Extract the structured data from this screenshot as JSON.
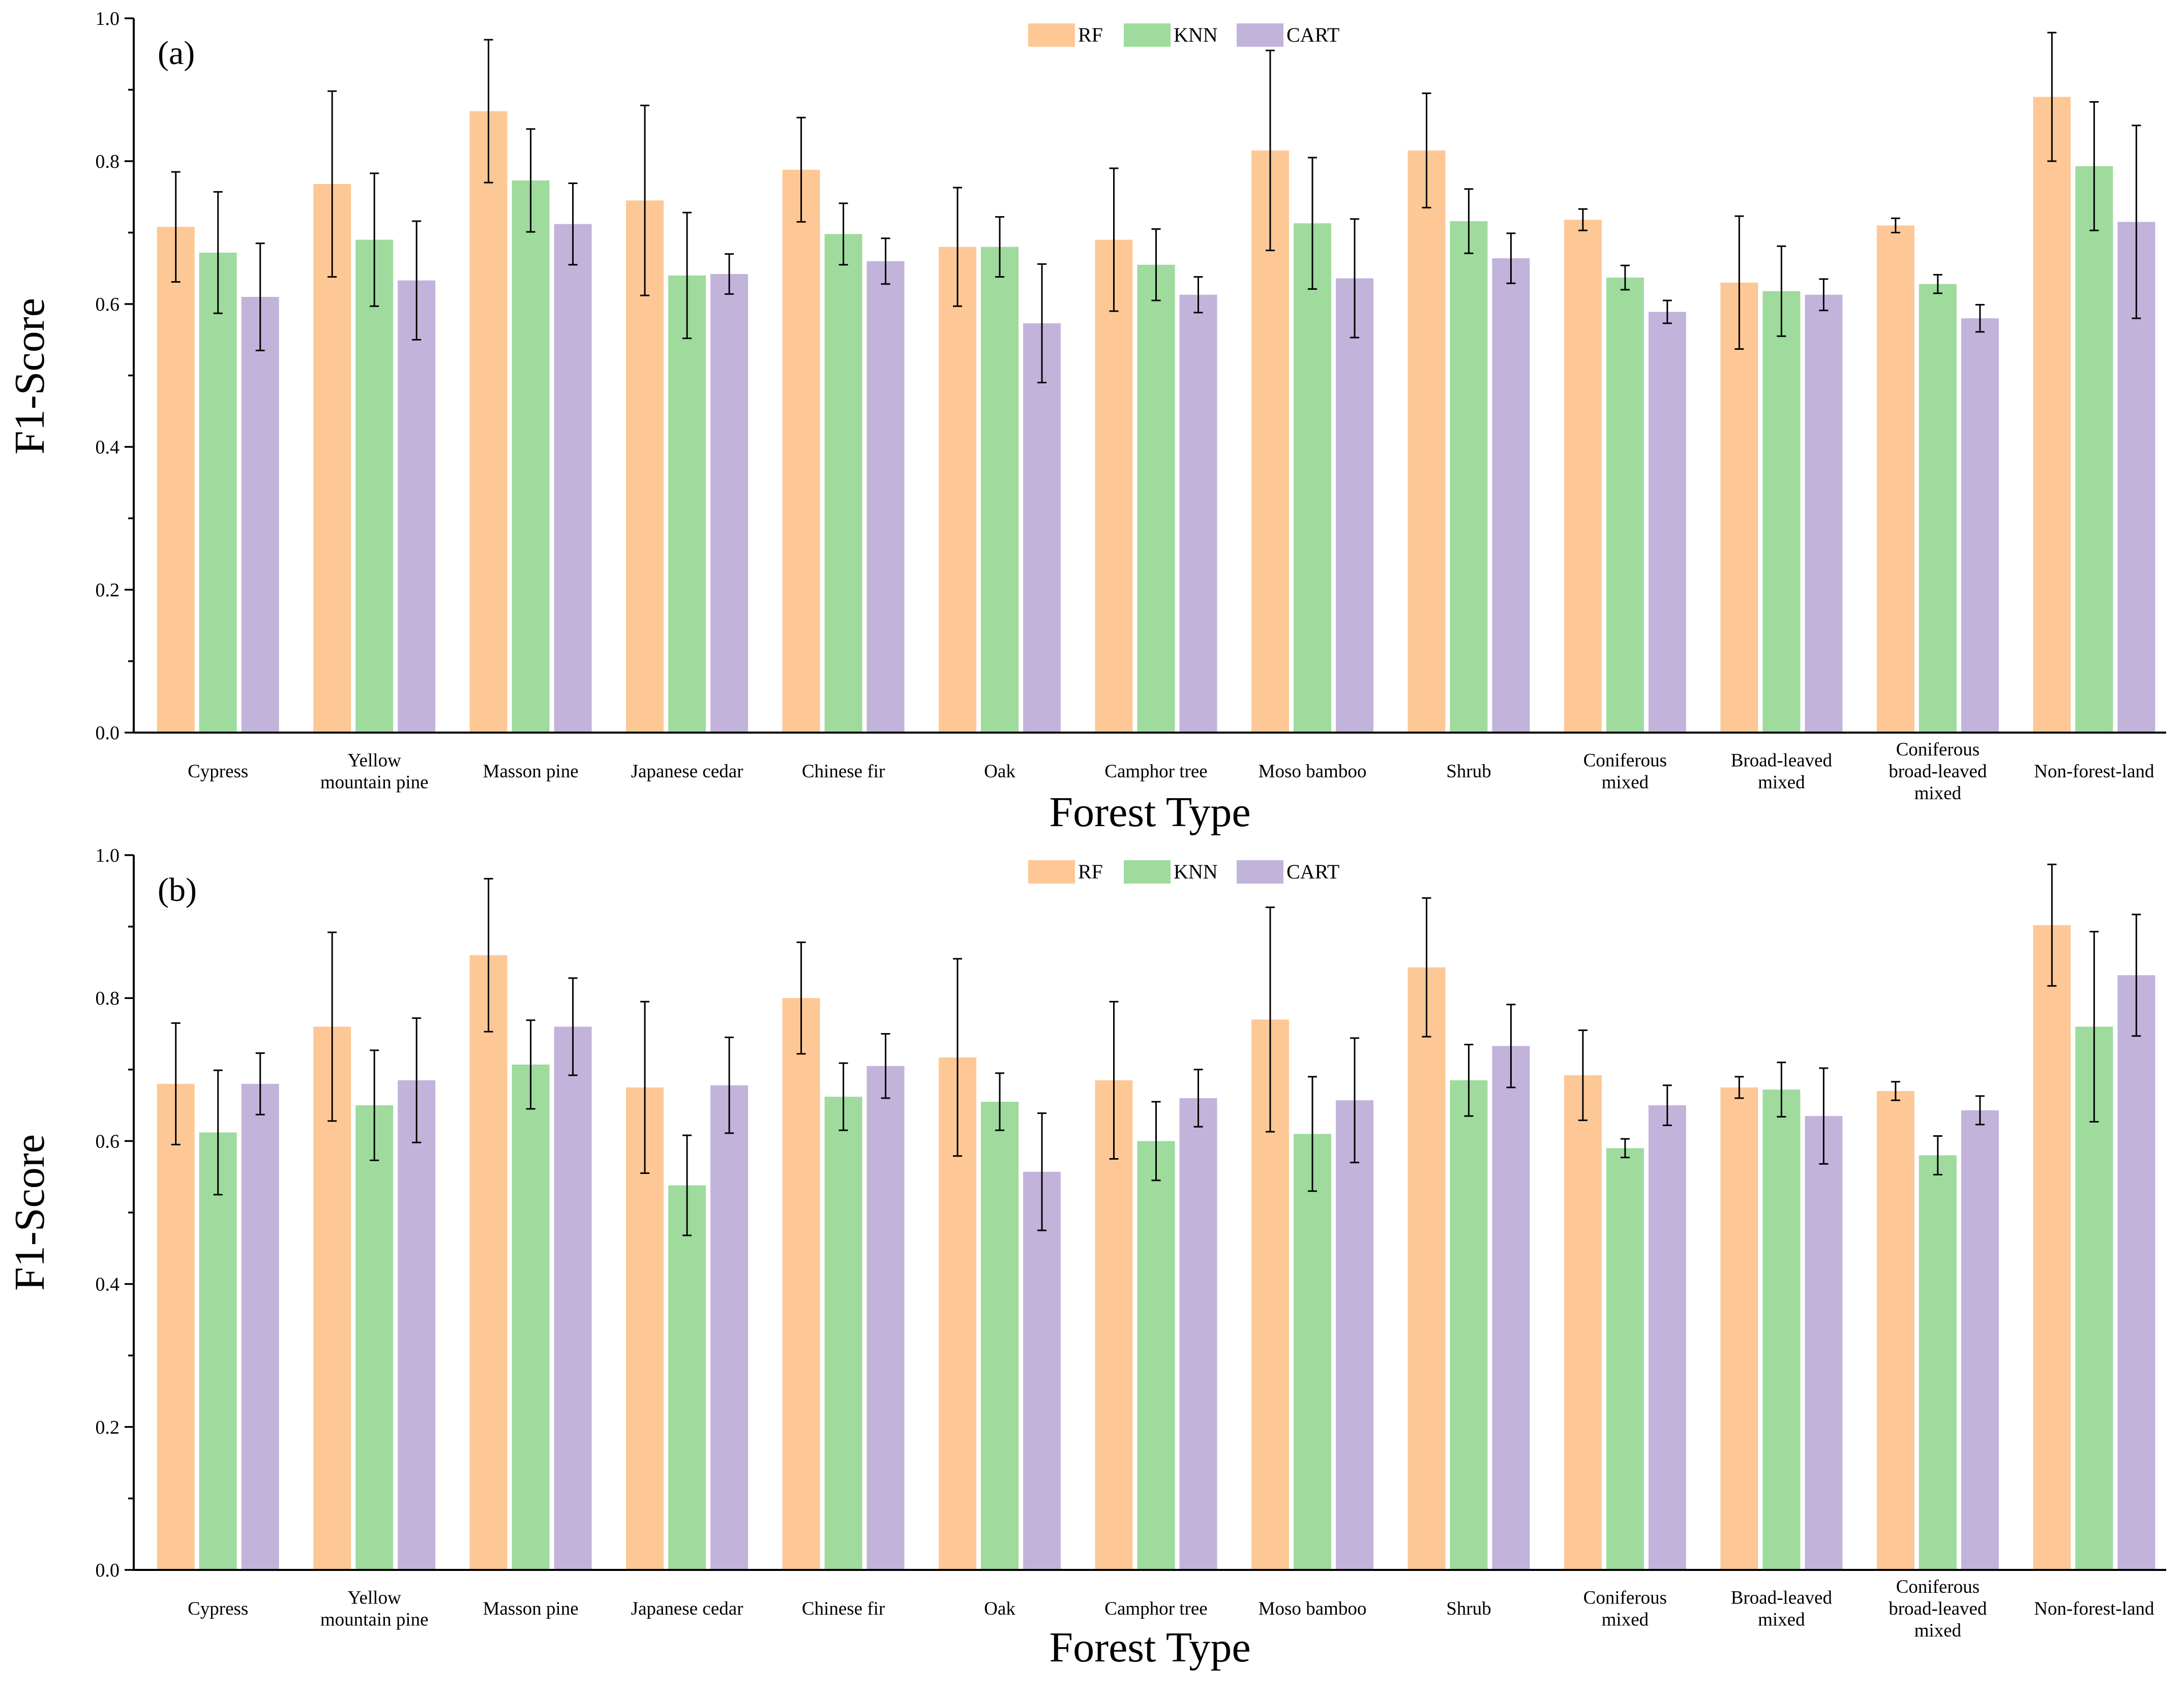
{
  "colors": {
    "RF": "#fdc896",
    "KNN": "#9edb9d",
    "CART": "#c2b3db",
    "axis": "#000000"
  },
  "chart_data": [
    {
      "type": "bar",
      "panel_label": "(a)",
      "xlabel": "Forest Type",
      "ylabel": "F1-Score",
      "ylim": [
        0.0,
        1.0
      ],
      "yticks": [
        "0.0",
        "0.2",
        "0.4",
        "0.6",
        "0.8",
        "1.0"
      ],
      "legend_position": "top-center",
      "categories": [
        [
          "Cypress"
        ],
        [
          "Yellow",
          "mountain pine"
        ],
        [
          "Masson pine"
        ],
        [
          "Japanese cedar"
        ],
        [
          "Chinese fir"
        ],
        [
          "Oak"
        ],
        [
          "Camphor tree"
        ],
        [
          "Moso bamboo"
        ],
        [
          "Shrub"
        ],
        [
          "Coniferous",
          "mixed"
        ],
        [
          "Broad-leaved",
          "mixed"
        ],
        [
          "Coniferous",
          "broad-leaved",
          "mixed"
        ],
        [
          "Non-forest-land"
        ]
      ],
      "series": [
        {
          "name": "RF",
          "values": [
            0.708,
            0.768,
            0.87,
            0.745,
            0.788,
            0.68,
            0.69,
            0.815,
            0.815,
            0.718,
            0.63,
            0.71,
            0.89
          ],
          "errors": [
            0.077,
            0.13,
            0.1,
            0.133,
            0.073,
            0.083,
            0.1,
            0.14,
            0.08,
            0.015,
            0.093,
            0.01,
            0.09
          ]
        },
        {
          "name": "KNN",
          "values": [
            0.672,
            0.69,
            0.773,
            0.64,
            0.698,
            0.68,
            0.655,
            0.713,
            0.716,
            0.637,
            0.618,
            0.628,
            0.793
          ],
          "errors": [
            0.085,
            0.093,
            0.072,
            0.088,
            0.043,
            0.042,
            0.05,
            0.092,
            0.045,
            0.017,
            0.063,
            0.013,
            0.09
          ]
        },
        {
          "name": "CART",
          "values": [
            0.61,
            0.633,
            0.712,
            0.642,
            0.66,
            0.573,
            0.613,
            0.636,
            0.664,
            0.589,
            0.613,
            0.58,
            0.715
          ],
          "errors": [
            0.075,
            0.083,
            0.057,
            0.028,
            0.032,
            0.083,
            0.025,
            0.083,
            0.035,
            0.016,
            0.022,
            0.019,
            0.135
          ]
        }
      ]
    },
    {
      "type": "bar",
      "panel_label": "(b)",
      "xlabel": "Forest Type",
      "ylabel": "F1-Score",
      "ylim": [
        0.0,
        1.0
      ],
      "yticks": [
        "0.0",
        "0.2",
        "0.4",
        "0.6",
        "0.8",
        "1.0"
      ],
      "legend_position": "top-center",
      "categories": [
        [
          "Cypress"
        ],
        [
          "Yellow",
          "mountain pine"
        ],
        [
          "Masson pine"
        ],
        [
          "Japanese cedar"
        ],
        [
          "Chinese fir"
        ],
        [
          "Oak"
        ],
        [
          "Camphor tree"
        ],
        [
          "Moso bamboo"
        ],
        [
          "Shrub"
        ],
        [
          "Coniferous",
          "mixed"
        ],
        [
          "Broad-leaved",
          "mixed"
        ],
        [
          "Coniferous",
          "broad-leaved",
          "mixed"
        ],
        [
          "Non-forest-land"
        ]
      ],
      "series": [
        {
          "name": "RF",
          "values": [
            0.68,
            0.76,
            0.86,
            0.675,
            0.8,
            0.717,
            0.685,
            0.77,
            0.843,
            0.692,
            0.675,
            0.67,
            0.902
          ],
          "errors": [
            0.085,
            0.132,
            0.107,
            0.12,
            0.078,
            0.138,
            0.11,
            0.157,
            0.097,
            0.063,
            0.015,
            0.013,
            0.085
          ]
        },
        {
          "name": "KNN",
          "values": [
            0.612,
            0.65,
            0.707,
            0.538,
            0.662,
            0.655,
            0.6,
            0.61,
            0.685,
            0.59,
            0.672,
            0.58,
            0.76
          ],
          "errors": [
            0.087,
            0.077,
            0.062,
            0.07,
            0.047,
            0.04,
            0.055,
            0.08,
            0.05,
            0.013,
            0.038,
            0.027,
            0.133
          ]
        },
        {
          "name": "CART",
          "values": [
            0.68,
            0.685,
            0.76,
            0.678,
            0.705,
            0.557,
            0.66,
            0.657,
            0.733,
            0.65,
            0.635,
            0.643,
            0.832
          ],
          "errors": [
            0.043,
            0.087,
            0.068,
            0.067,
            0.045,
            0.082,
            0.04,
            0.087,
            0.058,
            0.028,
            0.067,
            0.02,
            0.085
          ]
        }
      ]
    }
  ]
}
